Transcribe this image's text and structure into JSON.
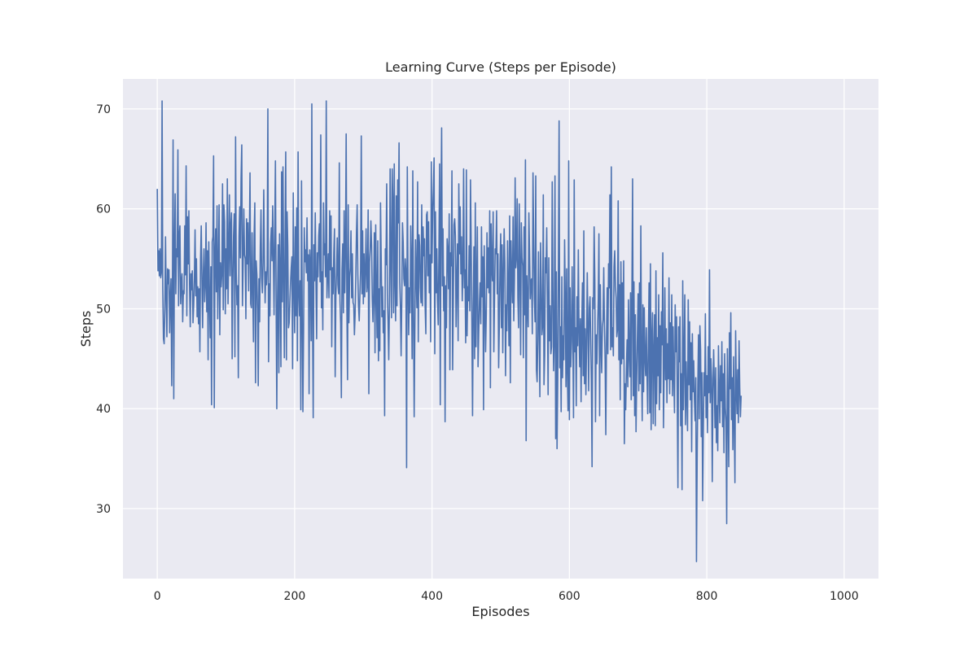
{
  "chart_data": {
    "type": "line",
    "title": "Learning Curve (Steps per Episode)",
    "xlabel": "Episodes",
    "ylabel": "Steps",
    "xlim": [
      -50,
      1050
    ],
    "ylim": [
      23,
      73
    ],
    "xticks": [
      0,
      200,
      400,
      600,
      800,
      1000
    ],
    "yticks": [
      30,
      40,
      50,
      60,
      70
    ],
    "xtick_labels": [
      "0",
      "200",
      "400",
      "600",
      "800",
      "1000"
    ],
    "ytick_labels": [
      "30",
      "40",
      "50",
      "60",
      "70"
    ],
    "grid": true,
    "style": "seaborn-darkgrid",
    "colors": {
      "plot_background": "#eaeaf2",
      "grid": "#ffffff",
      "line": "#4c72b0",
      "text": "#262626"
    },
    "series": [
      {
        "x_start": 0,
        "x_step": 1,
        "values": [
          62.0,
          53.8,
          55.8,
          53.3,
          56.0,
          53.1,
          53.6,
          70.8,
          52.0,
          47.0,
          46.5,
          50.1,
          57.2,
          51.0,
          47.2,
          54.0,
          52.5,
          53.9,
          47.6,
          51.2,
          53.0,
          42.3,
          51.6,
          66.9,
          41.0,
          56.0,
          61.5,
          51.5,
          56.0,
          55.2,
          65.9,
          50.3,
          57.3,
          58.3,
          50.5,
          52.6,
          53.5,
          48.7,
          51.8,
          51.5,
          58.3,
          53.4,
          64.3,
          49.3,
          59.2,
          54.5,
          59.8,
          52.4,
          48.2,
          53.5,
          51.9,
          53.8,
          48.6,
          50.4,
          53.0,
          57.9,
          51.3,
          55.0,
          49.2,
          52.2,
          48.5,
          52.0,
          45.7,
          55.0,
          58.3,
          53.0,
          48.1,
          53.5,
          56.0,
          50.7,
          52.4,
          58.6,
          49.7,
          55.8,
          44.9,
          56.7,
          51.0,
          47.1,
          54.2,
          40.4,
          56.7,
          57.2,
          65.3,
          40.1,
          55.5,
          58.0,
          51.7,
          60.3,
          49.0,
          53.7,
          60.4,
          47.4,
          54.6,
          52.2,
          53.5,
          62.5,
          49.9,
          60.4,
          58.7,
          49.5,
          56.0,
          52.0,
          63.0,
          50.5,
          55.6,
          61.4,
          53.3,
          58.3,
          59.6,
          45.0,
          52.6,
          57.3,
          59.5,
          45.2,
          67.2,
          53.5,
          50.4,
          52.3,
          43.1,
          57.2,
          60.2,
          55.1,
          63.1,
          66.4,
          50.3,
          54.6,
          60.0,
          55.4,
          55.0,
          49.0,
          59.0,
          54.5,
          58.6,
          51.8,
          56.8,
          63.6,
          50.5,
          50.1,
          57.6,
          52.1,
          46.7,
          57.3,
          60.6,
          42.6,
          54.8,
          53.4,
          49.8,
          42.3,
          53.0,
          48.7,
          56.2,
          59.9,
          53.1,
          51.6,
          54.6,
          61.9,
          54.8,
          50.6,
          53.7,
          52.4,
          54.3,
          70.0,
          44.7,
          52.5,
          49.3,
          56.5,
          58.1,
          54.8,
          60.3,
          55.4,
          49.4,
          57.6,
          64.8,
          51.0,
          40.0,
          50.8,
          56.4,
          43.6,
          57.5,
          53.8,
          44.2,
          63.7,
          50.7,
          64.2,
          53.1,
          45.1,
          56.9,
          65.7,
          44.9,
          59.7,
          56.3,
          48.1,
          48.6,
          50.7,
          52.6,
          54.1,
          55.2,
          44.0,
          61.6,
          52.5,
          47.6,
          58.2,
          49.3,
          60.1,
          44.8,
          65.7,
          51.6,
          49.3,
          52.8,
          39.9,
          62.8,
          50.1,
          39.7,
          47.8,
          58.1,
          54.7,
          55.9,
          53.6,
          59.1,
          52.8,
          55.4,
          41.5,
          55.9,
          54.2,
          46.8,
          70.5,
          49.2,
          39.1,
          56.4,
          52.8,
          59.6,
          53.0,
          47.0,
          55.6,
          53.2,
          57.3,
          58.5,
          52.7,
          67.4,
          50.1,
          53.7,
          47.9,
          60.6,
          55.4,
          56.5,
          53.2,
          70.8,
          51.1,
          53.3,
          55.5,
          51.1,
          59.8,
          53.9,
          59.3,
          46.2,
          54.1,
          51.5,
          55.6,
          58.0,
          43.2,
          51.3,
          53.6,
          57.1,
          52.4,
          51.5,
          64.6,
          50.8,
          48.5,
          41.1,
          53.9,
          56.5,
          49.6,
          59.8,
          51.6,
          55.8,
          67.5,
          50.4,
          42.9,
          60.4,
          48.6,
          53.1,
          54.1,
          57.8,
          51.1,
          55.5,
          50.6,
          50.4,
          47.4,
          49.4,
          53.1,
          57.7,
          60.4,
          53.4,
          50.3,
          48.8,
          51.4,
          53.8,
          67.3,
          51.5,
          57.8,
          50.5,
          55.5,
          51.2,
          53.9,
          58.0,
          51.7,
          52.5,
          59.9,
          41.5,
          54.7,
          56.0,
          58.8,
          56.3,
          51.0,
          48.7,
          51.6,
          57.6,
          45.6,
          58.4,
          51.7,
          47.1,
          56.8,
          44.8,
          52.0,
          45.8,
          60.6,
          54.9,
          49.2,
          52.2,
          47.6,
          49.8,
          39.3,
          56.0,
          54.4,
          62.5,
          51.4,
          48.8,
          44.9,
          50.6,
          64.0,
          54.5,
          49.1,
          64.0,
          60.8,
          49.6,
          64.5,
          52.6,
          48.8,
          61.3,
          50.3,
          62.9,
          58.6,
          66.6,
          52.7,
          50.2,
          45.3,
          51.1,
          58.6,
          56.7,
          53.0,
          52.3,
          55.0,
          53.7,
          34.1,
          64.2,
          53.1,
          47.4,
          52.1,
          49.6,
          58.3,
          54.7,
          45.0,
          63.8,
          49.8,
          39.2,
          48.0,
          56.9,
          53.1,
          50.1,
          62.7,
          46.7,
          57.4,
          56.3,
          52.1,
          50.6,
          60.4,
          50.3,
          58.2,
          55.3,
          57.0,
          50.2,
          47.5,
          59.4,
          59.7,
          53.3,
          58.7,
          51.6,
          55.4,
          46.7,
          64.7,
          54.6,
          59.7,
          62.0,
          65.1,
          45.5,
          59.7,
          51.6,
          56.0,
          50.8,
          48.4,
          55.3,
          64.5,
          40.4,
          60.2,
          68.1,
          52.3,
          58.0,
          49.8,
          53.2,
          38.7,
          52.3,
          48.1,
          57.0,
          55.8,
          52.0,
          59.5,
          43.9,
          55.6,
          54.3,
          63.8,
          43.9,
          50.9,
          58.4,
          59.0,
          57.3,
          48.2,
          52.8,
          56.5,
          46.8,
          62.5,
          55.5,
          60.2,
          53.5,
          57.2,
          50.8,
          53.9,
          64.0,
          52.1,
          53.9,
          46.6,
          63.9,
          47.3,
          52.2,
          50.8,
          56.3,
          49.8,
          62.9,
          56.4,
          48.7,
          39.3,
          50.4,
          56.2,
          45.0,
          60.6,
          46.2,
          52.5,
          58.2,
          44.2,
          47.7,
          50.7,
          52.6,
          48.5,
          58.2,
          51.2,
          55.2,
          39.9,
          56.3,
          50.2,
          45.7,
          49.5,
          57.6,
          52.1,
          56.1,
          51.6,
          59.8,
          42.1,
          58.5,
          54.3,
          52.8,
          59.7,
          45.7,
          51.2,
          56.0,
          55.5,
          59.8,
          51.5,
          55.5,
          44.1,
          48.5,
          54.5,
          57.5,
          48.1,
          56.4,
          45.6,
          53.4,
          58.0,
          54.6,
          43.3,
          50.4,
          47.8,
          56.8,
          52.0,
          46.3,
          59.3,
          42.6,
          56.8,
          53.2,
          50.6,
          59.2,
          48.8,
          53.0,
          63.1,
          54.1,
          55.2,
          61.0,
          51.1,
          48.1,
          60.5,
          54.2,
          45.4,
          58.6,
          55.1,
          54.3,
          45.1,
          58.2,
          49.4,
          64.9,
          36.8,
          53.3,
          50.5,
          48.2,
          59.6,
          55.7,
          51.0,
          52.8,
          53.0,
          47.5,
          63.6,
          56.9,
          51.0,
          48.7,
          63.3,
          43.9,
          42.7,
          46.9,
          55.7,
          48.1,
          41.2,
          56.6,
          52.4,
          47.4,
          48.3,
          61.4,
          42.4,
          45.4,
          55.1,
          53.6,
          58.1,
          50.5,
          41.4,
          55.1,
          46.8,
          50.3,
          45.5,
          46.2,
          62.7,
          52.0,
          43.8,
          47.0,
          63.3,
          37.0,
          53.7,
          36.0,
          42.8,
          54.5,
          68.8,
          44.1,
          48.2,
          39.7,
          53.2,
          43.1,
          47.3,
          44.9,
          56.9,
          51.0,
          42.2,
          54.0,
          43.7,
          39.8,
          64.8,
          38.9,
          52.1,
          44.2,
          46.7,
          54.2,
          47.3,
          39.1,
          62.9,
          45.7,
          48.1,
          40.3,
          51.2,
          46.3,
          55.9,
          47.8,
          44.2,
          49.0,
          40.7,
          48.3,
          52.6,
          43.3,
          57.8,
          42.5,
          48.0,
          41.4,
          46.2,
          53.6,
          48.3,
          41.8,
          50.1,
          51.2,
          47.0,
          42.8,
          34.2,
          51.1,
          50.0,
          58.2,
          53.0,
          38.7,
          47.4,
          44.5,
          47.9,
          50.8,
          57.5,
          39.3,
          52.4,
          46.5,
          43.6,
          48.2,
          48.9,
          54.1,
          48.3,
          44.9,
          37.4,
          46.8,
          52.1,
          45.5,
          54.5,
          52.1,
          61.4,
          45.9,
          64.2,
          46.2,
          48.1,
          45.3,
          54.2,
          55.8,
          52.3,
          51.1,
          47.2,
          47.9,
          60.8,
          44.9,
          52.4,
          40.9,
          54.7,
          44.5,
          52.6,
          45.0,
          54.8,
          36.5,
          42.5,
          39.9,
          44.0,
          46.9,
          42.2,
          50.9,
          45.4,
          43.2,
          51.6,
          40.9,
          51.3,
          63.0,
          41.3,
          52.7,
          39.3,
          49.4,
          37.7,
          43.0,
          47.3,
          51.5,
          41.8,
          52.6,
          42.5,
          58.3,
          44.7,
          38.8,
          50.4,
          41.7,
          50.1,
          45.0,
          43.3,
          48.1,
          43.4,
          39.5,
          47.0,
          52.6,
          39.6,
          54.5,
          37.9,
          47.0,
          49.6,
          38.5,
          45.6,
          49.4,
          38.3,
          53.8,
          40.5,
          47.1,
          43.3,
          51.4,
          39.9,
          48.3,
          41.6,
          49.7,
          46.4,
          55.6,
          38.1,
          44.3,
          52.1,
          42.9,
          48.0,
          40.6,
          46.5,
          43.0,
          53.1,
          41.5,
          48.6,
          42.9,
          51.4,
          41.3,
          48.2,
          43.2,
          39.6,
          50.4,
          45.7,
          49.2,
          41.4,
          32.1,
          48.2,
          44.7,
          49.2,
          38.3,
          43.5,
          31.9,
          52.8,
          39.9,
          44.9,
          51.4,
          38.4,
          44.7,
          41.0,
          37.8,
          50.9,
          42.4,
          48.7,
          40.9,
          46.6,
          35.7,
          47.5,
          41.7,
          44.8,
          40.9,
          38.8,
          43.1,
          24.7,
          35.0,
          42.4,
          47.4,
          39.0,
          48.3,
          45.9,
          37.2,
          43.6,
          30.8,
          38.3,
          43.6,
          41.3,
          49.5,
          39.1,
          43.3,
          37.6,
          46.2,
          41.6,
          53.9,
          40.6,
          45.0,
          43.0,
          32.7,
          41.9,
          45.9,
          42.4,
          38.1,
          44.1,
          36.6,
          40.3,
          35.8,
          46.3,
          42.0,
          38.6,
          44.3,
          40.8,
          46.7,
          38.2,
          43.5,
          35.6,
          45.5,
          40.1,
          38.7,
          28.5,
          46.0,
          40.3,
          34.2,
          47.6,
          42.0,
          49.6,
          38.9,
          43.1,
          35.9,
          45.2,
          38.8,
          32.6,
          47.8,
          41.9,
          39.5,
          43.9,
          38.6,
          46.8,
          42.1,
          39.2,
          41.3
        ]
      }
    ]
  }
}
